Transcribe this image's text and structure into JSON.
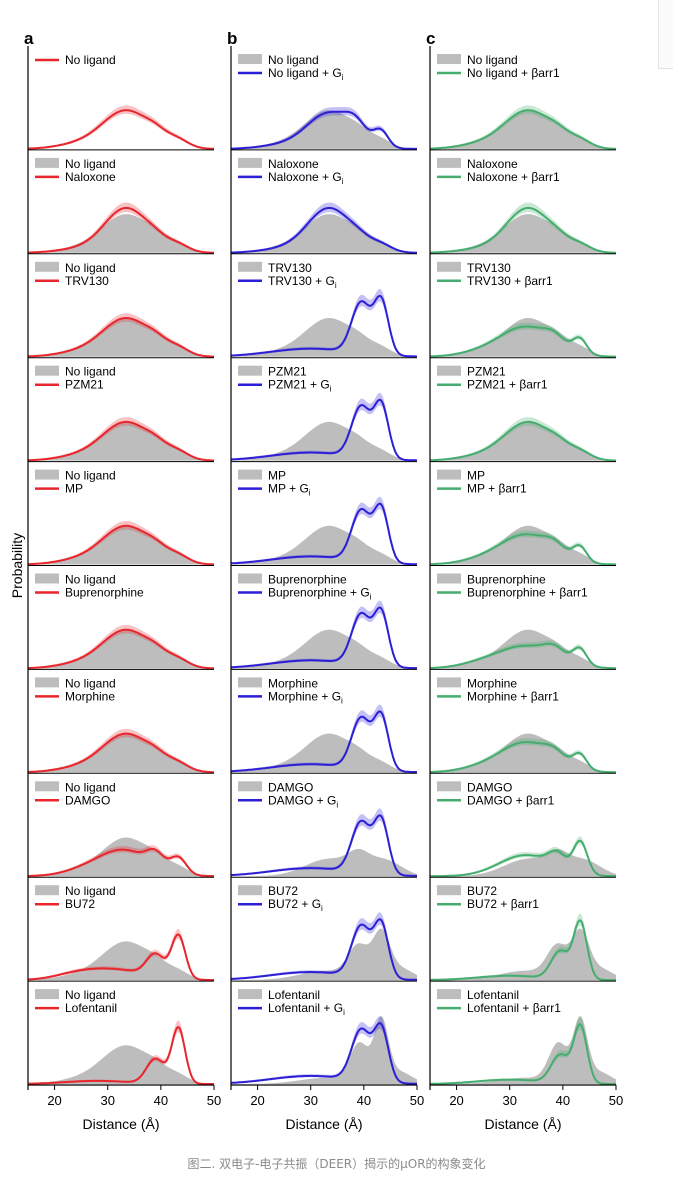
{
  "caption": "图二. 双电子-电子共振（DEER）揭示的μOR的构象变化",
  "ylabel": "Probability",
  "colors": {
    "a": "#e8262d",
    "b": "#2d1fd6",
    "c": "#45ad6d",
    "reference": "#bdbdbd"
  },
  "chart_data": {
    "type": "area",
    "x_label": "Distance (Å)",
    "x_ticks": [
      "20",
      "30",
      "40",
      "50"
    ],
    "x_range": [
      15,
      50
    ],
    "panels": [
      {
        "letter": "a",
        "rows": [
          {
            "ref": "",
            "series": "No ligand",
            "ref_profile": "none",
            "series_profile": "noligand"
          },
          {
            "ref": "No ligand",
            "series": "Naloxone",
            "ref_profile": "noligand",
            "series_profile": "noligand_hi"
          },
          {
            "ref": "No ligand",
            "series": "TRV130",
            "ref_profile": "noligand",
            "series_profile": "noligand"
          },
          {
            "ref": "No ligand",
            "series": "PZM21",
            "ref_profile": "noligand",
            "series_profile": "noligand"
          },
          {
            "ref": "No ligand",
            "series": "MP",
            "ref_profile": "noligand",
            "series_profile": "noligand"
          },
          {
            "ref": "No ligand",
            "series": "Buprenorphine",
            "ref_profile": "noligand",
            "series_profile": "noligand"
          },
          {
            "ref": "No ligand",
            "series": "Morphine",
            "ref_profile": "noligand",
            "series_profile": "noligand"
          },
          {
            "ref": "No ligand",
            "series": "DAMGO",
            "ref_profile": "noligand",
            "series_profile": "damgo_a"
          },
          {
            "ref": "No ligand",
            "series": "BU72",
            "ref_profile": "noligand",
            "series_profile": "bu72_a"
          },
          {
            "ref": "No ligand",
            "series": "Lofentanil",
            "ref_profile": "noligand",
            "series_profile": "lofentanil_a"
          }
        ]
      },
      {
        "letter": "b",
        "rows": [
          {
            "ref": "No ligand",
            "series": "No ligand + G",
            "sub": "i",
            "ref_profile": "noligand",
            "series_profile": "gi_noligand"
          },
          {
            "ref": "Naloxone",
            "series": "Naloxone + G",
            "sub": "i",
            "ref_profile": "noligand",
            "series_profile": "noligand_hi"
          },
          {
            "ref": "TRV130",
            "series": "TRV130 + G",
            "sub": "i",
            "ref_profile": "noligand",
            "series_profile": "gi_active"
          },
          {
            "ref": "PZM21",
            "series": "PZM21 + G",
            "sub": "i",
            "ref_profile": "noligand",
            "series_profile": "gi_active"
          },
          {
            "ref": "MP",
            "series": "MP + G",
            "sub": "i",
            "ref_profile": "noligand",
            "series_profile": "gi_active"
          },
          {
            "ref": "Buprenorphine",
            "series": "Buprenorphine + G",
            "sub": "i",
            "ref_profile": "noligand",
            "series_profile": "gi_active"
          },
          {
            "ref": "Morphine",
            "series": "Morphine + G",
            "sub": "i",
            "ref_profile": "noligand",
            "series_profile": "gi_active"
          },
          {
            "ref": "DAMGO",
            "series": "DAMGO + G",
            "sub": "i",
            "ref_profile": "damgo_ref",
            "series_profile": "gi_active"
          },
          {
            "ref": "BU72",
            "series": "BU72 + G",
            "sub": "i",
            "ref_profile": "bu72_ref",
            "series_profile": "gi_active"
          },
          {
            "ref": "Lofentanil",
            "series": "Lofentanil + G",
            "sub": "i",
            "ref_profile": "lofentanil_ref",
            "series_profile": "gi_active"
          }
        ]
      },
      {
        "letter": "c",
        "rows": [
          {
            "ref": "No ligand",
            "series": "No ligand + βarr1",
            "ref_profile": "noligand",
            "series_profile": "noligand"
          },
          {
            "ref": "Naloxone",
            "series": "Naloxone + βarr1",
            "ref_profile": "noligand",
            "series_profile": "noligand_hi"
          },
          {
            "ref": "TRV130",
            "series": "TRV130 + βarr1",
            "ref_profile": "noligand",
            "series_profile": "arr_mid"
          },
          {
            "ref": "PZM21",
            "series": "PZM21 + βarr1",
            "ref_profile": "noligand",
            "series_profile": "noligand"
          },
          {
            "ref": "MP",
            "series": "MP + βarr1",
            "ref_profile": "noligand",
            "series_profile": "arr_mid"
          },
          {
            "ref": "Buprenorphine",
            "series": "Buprenorphine + βarr1",
            "ref_profile": "noligand",
            "series_profile": "arr_bup"
          },
          {
            "ref": "Morphine",
            "series": "Morphine + βarr1",
            "ref_profile": "noligand",
            "series_profile": "arr_mid"
          },
          {
            "ref": "DAMGO",
            "series": "DAMGO + βarr1",
            "ref_profile": "damgo_ref",
            "series_profile": "arr_damgo"
          },
          {
            "ref": "BU72",
            "series": "BU72 + βarr1",
            "ref_profile": "bu72_ref",
            "series_profile": "arr_active"
          },
          {
            "ref": "Lofentanil",
            "series": "Lofentanil + βarr1",
            "ref_profile": "lofentanil_ref",
            "series_profile": "arr_active"
          }
        ]
      }
    ]
  }
}
